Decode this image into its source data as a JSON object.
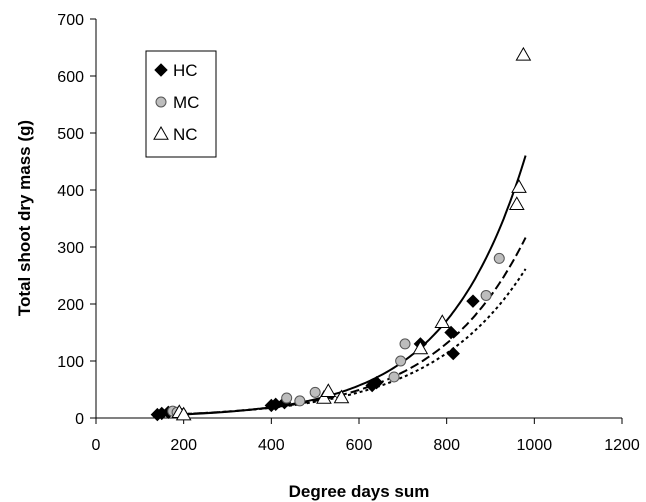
{
  "chart_data": {
    "type": "scatter",
    "title": "",
    "xlabel": "Degree days sum",
    "ylabel": "Total shoot dry mass (g)",
    "xlim": [
      0,
      1200
    ],
    "ylim": [
      0,
      700
    ],
    "xticks": [
      "0",
      "200",
      "400",
      "600",
      "800",
      "1000",
      "1200"
    ],
    "yticks": [
      "0",
      "100",
      "200",
      "300",
      "400",
      "500",
      "600",
      "700"
    ],
    "grid": false,
    "legend_position": "top-left",
    "series": [
      {
        "name": "HC",
        "marker": "diamond",
        "color": "#000000",
        "points": [
          [
            140,
            6
          ],
          [
            150,
            8
          ],
          [
            165,
            10
          ],
          [
            400,
            22
          ],
          [
            410,
            24
          ],
          [
            430,
            27
          ],
          [
            630,
            57
          ],
          [
            640,
            62
          ],
          [
            740,
            130
          ],
          [
            810,
            150
          ],
          [
            815,
            113
          ],
          [
            860,
            205
          ]
        ],
        "trend": {
          "style": "dashed",
          "a": 2.6,
          "b": 0.0049
        }
      },
      {
        "name": "MC",
        "marker": "circle",
        "color": "#bdbdbd",
        "points": [
          [
            175,
            12
          ],
          [
            185,
            10
          ],
          [
            195,
            8
          ],
          [
            435,
            35
          ],
          [
            465,
            30
          ],
          [
            500,
            45
          ],
          [
            680,
            72
          ],
          [
            695,
            100
          ],
          [
            705,
            130
          ],
          [
            890,
            215
          ],
          [
            920,
            280
          ]
        ],
        "trend": {
          "style": "dotted",
          "a": 2.8,
          "b": 0.00463
        }
      },
      {
        "name": "NC",
        "marker": "triangle",
        "color": "#ffffff",
        "points": [
          [
            190,
            10
          ],
          [
            200,
            6
          ],
          [
            520,
            35
          ],
          [
            530,
            47
          ],
          [
            560,
            36
          ],
          [
            740,
            122
          ],
          [
            790,
            168
          ],
          [
            960,
            375
          ],
          [
            965,
            405
          ],
          [
            975,
            637
          ]
        ],
        "trend": {
          "style": "solid",
          "a": 2.1,
          "b": 0.0055
        }
      }
    ]
  }
}
